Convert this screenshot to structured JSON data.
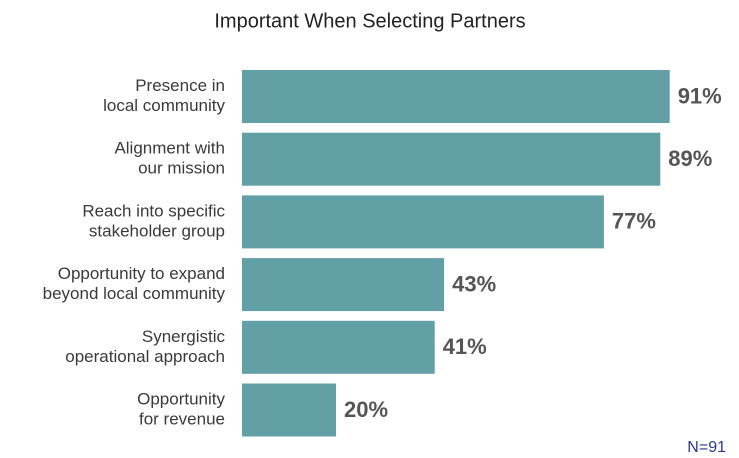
{
  "chart_data": {
    "type": "bar",
    "orientation": "horizontal",
    "title": "Important When Selecting Partners",
    "categories": [
      [
        "Presence in",
        "local community"
      ],
      [
        "Alignment with",
        "our mission"
      ],
      [
        "Reach into specific",
        "stakeholder group"
      ],
      [
        "Opportunity to expand",
        "beyond local community"
      ],
      [
        "Synergistic",
        "operational approach"
      ],
      [
        "Opportunity",
        "for revenue"
      ]
    ],
    "values": [
      91,
      89,
      77,
      43,
      41,
      20
    ],
    "value_labels": [
      "91%",
      "89%",
      "77%",
      "43%",
      "41%",
      "20%"
    ],
    "color": "#62a0a6",
    "xlim": [
      0,
      100
    ],
    "note": "N=91"
  }
}
